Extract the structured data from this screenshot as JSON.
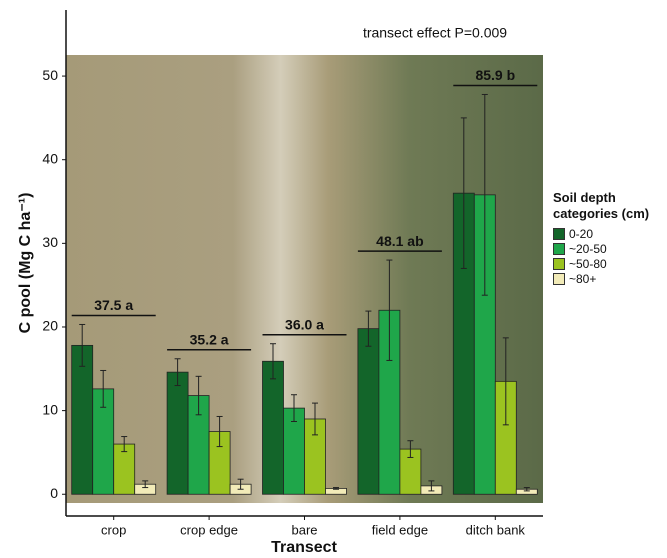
{
  "chart_data": {
    "type": "bar",
    "annotation": "transect effect P=0.009",
    "x_label": "Transect",
    "y_label": "C pool (Mg C ha⁻¹)",
    "legend_title": "Soil depth categories (cm)",
    "categories": [
      "crop",
      "crop edge",
      "bare",
      "field edge",
      "ditch bank"
    ],
    "group_labels": [
      "37.5 a",
      "35.2 a",
      "36.0 a",
      "48.1 ab",
      "85.9 b"
    ],
    "series": [
      {
        "name": "0-20",
        "color": "#13652a",
        "values": [
          17.8,
          14.6,
          15.9,
          19.8,
          36.0
        ],
        "errors": [
          2.5,
          1.6,
          2.1,
          2.1,
          9.0
        ]
      },
      {
        "name": "~20-50",
        "color": "#1fa64a",
        "values": [
          12.6,
          11.8,
          10.3,
          22.0,
          35.8
        ],
        "errors": [
          2.2,
          2.3,
          1.6,
          6.0,
          12.0
        ]
      },
      {
        "name": "~50-80",
        "color": "#9bc320",
        "values": [
          6.0,
          7.5,
          9.0,
          5.4,
          13.5
        ],
        "errors": [
          0.9,
          1.8,
          1.9,
          1.0,
          5.2
        ]
      },
      {
        "name": "~80+",
        "color": "#f2ebb8",
        "values": [
          1.2,
          1.2,
          0.7,
          1.0,
          0.6
        ],
        "errors": [
          0.4,
          0.6,
          0.1,
          0.6,
          0.2
        ]
      }
    ],
    "ylim": [
      -2.6,
      57.9
    ],
    "yticks": [
      0,
      10,
      20,
      30,
      40,
      50
    ]
  }
}
